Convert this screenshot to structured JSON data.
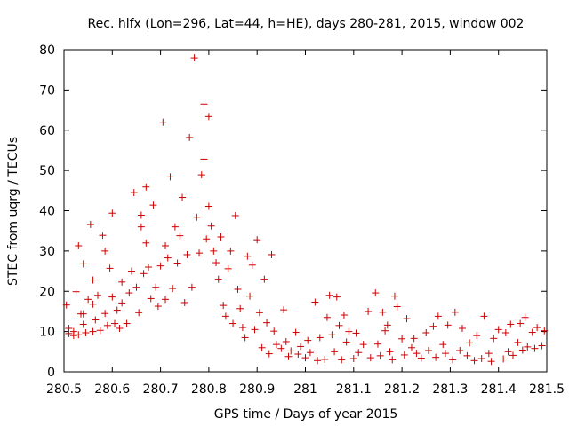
{
  "chart_data": {
    "type": "scatter",
    "title": "Rec. hlfx (Lon=296, Lat=44, h=HE), days 280-281, 2015, window 002",
    "xlabel": "GPS time / Days of year 2015",
    "ylabel": "STEC from uqrg / TECUs",
    "xlim": [
      280.5,
      281.5
    ],
    "ylim": [
      0,
      80
    ],
    "xticks": [
      {
        "value": 280.5,
        "label": "280.5"
      },
      {
        "value": 280.6,
        "label": "280.6"
      },
      {
        "value": 280.7,
        "label": "280.7"
      },
      {
        "value": 280.8,
        "label": "280.8"
      },
      {
        "value": 280.9,
        "label": "280.9"
      },
      {
        "value": 281.0,
        "label": "281"
      },
      {
        "value": 281.1,
        "label": "281.1"
      },
      {
        "value": 281.2,
        "label": "281.2"
      },
      {
        "value": 281.3,
        "label": "281.3"
      },
      {
        "value": 281.4,
        "label": "281.4"
      },
      {
        "value": 281.5,
        "label": "281.5"
      }
    ],
    "yticks": [
      {
        "value": 0,
        "label": "0"
      },
      {
        "value": 10,
        "label": "10"
      },
      {
        "value": 20,
        "label": "20"
      },
      {
        "value": 30,
        "label": "30"
      },
      {
        "value": 40,
        "label": "40"
      },
      {
        "value": 50,
        "label": "50"
      },
      {
        "value": 60,
        "label": "60"
      },
      {
        "value": 70,
        "label": "70"
      },
      {
        "value": 80,
        "label": "80"
      }
    ],
    "grid": false,
    "marker": "+",
    "marker_color": "#cc0000",
    "series": [
      {
        "name": "STEC",
        "points": [
          [
            280.505,
            16.6
          ],
          [
            280.51,
            10.8
          ],
          [
            280.51,
            9.5
          ],
          [
            280.52,
            9.0
          ],
          [
            280.52,
            10.0
          ],
          [
            280.525,
            19.9
          ],
          [
            280.53,
            31.3
          ],
          [
            280.53,
            9.2
          ],
          [
            280.535,
            14.4
          ],
          [
            280.54,
            26.8
          ],
          [
            280.54,
            14.4
          ],
          [
            280.54,
            11.8
          ],
          [
            280.545,
            9.7
          ],
          [
            280.55,
            18.0
          ],
          [
            280.555,
            36.6
          ],
          [
            280.56,
            22.8
          ],
          [
            280.56,
            16.8
          ],
          [
            280.56,
            10.0
          ],
          [
            280.565,
            12.9
          ],
          [
            280.57,
            19.0
          ],
          [
            280.575,
            10.3
          ],
          [
            280.58,
            33.9
          ],
          [
            280.585,
            30.0
          ],
          [
            280.585,
            14.5
          ],
          [
            280.59,
            11.5
          ],
          [
            280.595,
            25.7
          ],
          [
            280.6,
            39.4
          ],
          [
            280.6,
            18.6
          ],
          [
            280.605,
            12.0
          ],
          [
            280.61,
            15.3
          ],
          [
            280.615,
            10.8
          ],
          [
            280.62,
            22.3
          ],
          [
            280.62,
            17.1
          ],
          [
            280.63,
            12.0
          ],
          [
            280.635,
            19.6
          ],
          [
            280.64,
            25.0
          ],
          [
            280.645,
            44.5
          ],
          [
            280.65,
            21.0
          ],
          [
            280.655,
            14.7
          ],
          [
            280.66,
            38.9
          ],
          [
            280.66,
            36.0
          ],
          [
            280.665,
            24.4
          ],
          [
            280.67,
            45.9
          ],
          [
            280.67,
            32.0
          ],
          [
            280.675,
            26.0
          ],
          [
            280.68,
            18.2
          ],
          [
            280.685,
            41.4
          ],
          [
            280.69,
            21.0
          ],
          [
            280.695,
            16.3
          ],
          [
            280.7,
            26.3
          ],
          [
            280.705,
            62.0
          ],
          [
            280.71,
            31.3
          ],
          [
            280.71,
            18.0
          ],
          [
            280.715,
            28.3
          ],
          [
            280.72,
            48.4
          ],
          [
            280.725,
            20.7
          ],
          [
            280.73,
            36.0
          ],
          [
            280.735,
            27.0
          ],
          [
            280.74,
            33.8
          ],
          [
            280.745,
            43.3
          ],
          [
            280.75,
            17.2
          ],
          [
            280.755,
            29.1
          ],
          [
            280.76,
            58.2
          ],
          [
            280.765,
            21.0
          ],
          [
            280.77,
            78.0
          ],
          [
            280.775,
            38.4
          ],
          [
            280.78,
            29.5
          ],
          [
            280.785,
            48.9
          ],
          [
            280.79,
            66.5
          ],
          [
            280.79,
            52.8
          ],
          [
            280.795,
            33.0
          ],
          [
            280.8,
            63.4
          ],
          [
            280.8,
            41.1
          ],
          [
            280.805,
            36.2
          ],
          [
            280.81,
            30.0
          ],
          [
            280.815,
            27.1
          ],
          [
            280.82,
            23.0
          ],
          [
            280.825,
            33.5
          ],
          [
            280.83,
            16.5
          ],
          [
            280.835,
            13.8
          ],
          [
            280.84,
            25.6
          ],
          [
            280.845,
            30.0
          ],
          [
            280.85,
            12.0
          ],
          [
            280.855,
            38.8
          ],
          [
            280.86,
            20.5
          ],
          [
            280.865,
            15.7
          ],
          [
            280.87,
            11.0
          ],
          [
            280.875,
            8.5
          ],
          [
            280.88,
            28.7
          ],
          [
            280.885,
            18.8
          ],
          [
            280.89,
            26.5
          ],
          [
            280.895,
            10.5
          ],
          [
            280.9,
            32.8
          ],
          [
            280.905,
            14.7
          ],
          [
            280.91,
            6.0
          ],
          [
            280.915,
            23.0
          ],
          [
            280.92,
            12.2
          ],
          [
            280.925,
            4.5
          ],
          [
            280.93,
            29.1
          ],
          [
            280.935,
            10.1
          ],
          [
            280.94,
            6.8
          ],
          [
            280.95,
            5.8
          ],
          [
            280.955,
            15.4
          ],
          [
            280.96,
            7.5
          ],
          [
            280.965,
            3.8
          ],
          [
            280.97,
            5.2
          ],
          [
            280.98,
            9.8
          ],
          [
            280.985,
            4.4
          ],
          [
            280.99,
            6.3
          ],
          [
            281.0,
            3.5
          ],
          [
            281.005,
            7.8
          ],
          [
            281.01,
            4.8
          ],
          [
            281.02,
            17.3
          ],
          [
            281.025,
            2.8
          ],
          [
            281.03,
            8.5
          ],
          [
            281.04,
            3.1
          ],
          [
            281.045,
            13.5
          ],
          [
            281.05,
            19.0
          ],
          [
            281.055,
            9.2
          ],
          [
            281.06,
            5.0
          ],
          [
            281.065,
            18.6
          ],
          [
            281.07,
            11.5
          ],
          [
            281.075,
            3.0
          ],
          [
            281.08,
            14.1
          ],
          [
            281.085,
            7.4
          ],
          [
            281.09,
            10.0
          ],
          [
            281.1,
            3.3
          ],
          [
            281.105,
            9.6
          ],
          [
            281.11,
            4.8
          ],
          [
            281.12,
            6.8
          ],
          [
            281.13,
            15.0
          ],
          [
            281.135,
            3.5
          ],
          [
            281.145,
            19.6
          ],
          [
            281.15,
            6.9
          ],
          [
            281.155,
            4.0
          ],
          [
            281.16,
            14.8
          ],
          [
            281.165,
            10.2
          ],
          [
            281.17,
            11.6
          ],
          [
            281.175,
            5.0
          ],
          [
            281.18,
            3.0
          ],
          [
            281.185,
            18.8
          ],
          [
            281.19,
            16.2
          ],
          [
            281.2,
            8.2
          ],
          [
            281.205,
            4.2
          ],
          [
            281.21,
            13.2
          ],
          [
            281.22,
            6.0
          ],
          [
            281.225,
            8.3
          ],
          [
            281.23,
            4.6
          ],
          [
            281.24,
            3.4
          ],
          [
            281.25,
            9.7
          ],
          [
            281.255,
            5.3
          ],
          [
            281.265,
            11.3
          ],
          [
            281.27,
            3.6
          ],
          [
            281.275,
            13.8
          ],
          [
            281.285,
            6.8
          ],
          [
            281.29,
            4.6
          ],
          [
            281.295,
            11.6
          ],
          [
            281.305,
            3.0
          ],
          [
            281.31,
            14.8
          ],
          [
            281.32,
            5.3
          ],
          [
            281.325,
            10.8
          ],
          [
            281.335,
            4.0
          ],
          [
            281.34,
            7.2
          ],
          [
            281.35,
            2.8
          ],
          [
            281.355,
            9.0
          ],
          [
            281.365,
            3.3
          ],
          [
            281.37,
            13.8
          ],
          [
            281.38,
            4.6
          ],
          [
            281.385,
            2.6
          ],
          [
            281.39,
            8.3
          ],
          [
            281.4,
            10.5
          ],
          [
            281.41,
            3.2
          ],
          [
            281.415,
            9.7
          ],
          [
            281.42,
            5.0
          ],
          [
            281.425,
            11.8
          ],
          [
            281.43,
            4.1
          ],
          [
            281.44,
            7.3
          ],
          [
            281.445,
            12.0
          ],
          [
            281.45,
            5.4
          ],
          [
            281.455,
            13.5
          ],
          [
            281.46,
            6.2
          ],
          [
            281.47,
            9.8
          ],
          [
            281.475,
            5.8
          ],
          [
            281.48,
            11.0
          ],
          [
            281.49,
            6.5
          ],
          [
            281.495,
            10.2
          ]
        ]
      }
    ]
  }
}
